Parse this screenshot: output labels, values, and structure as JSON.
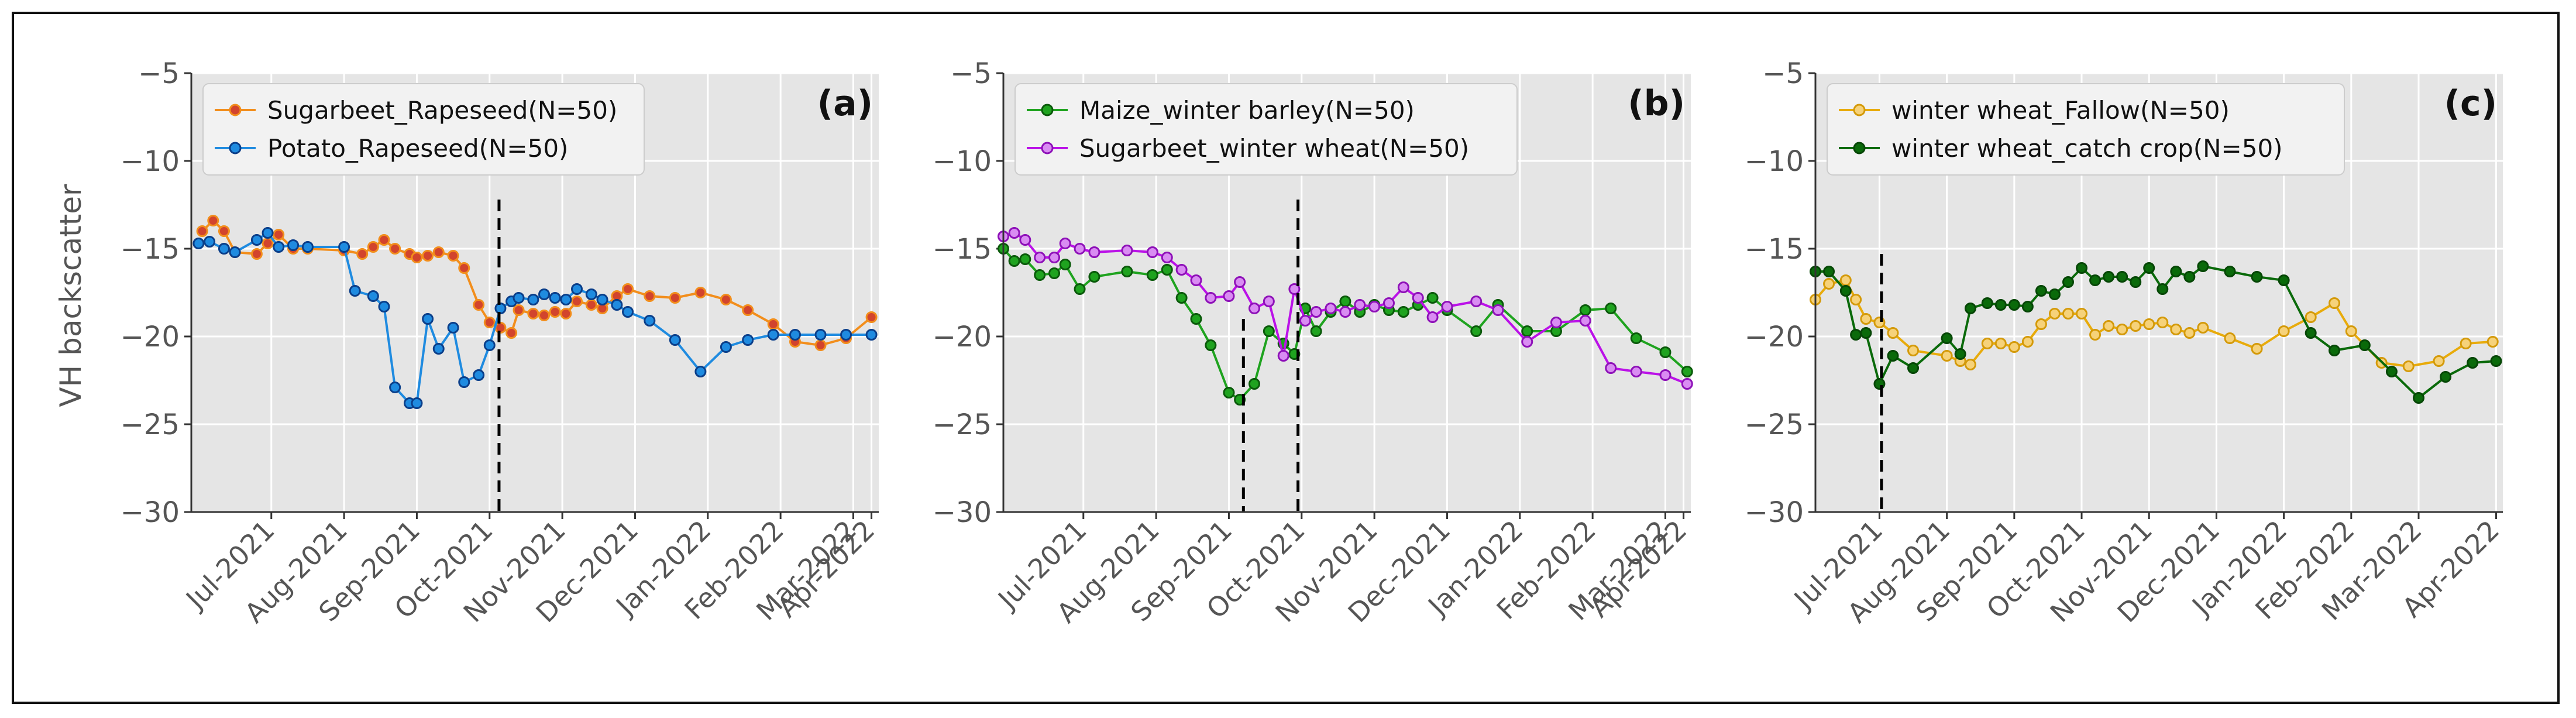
{
  "figure": {
    "y_axis_label": "VH backscatter",
    "colors": {
      "panel_bg": "#e5e5e5",
      "grid": "#ffffff",
      "tick_text": "#555555",
      "marker_vline": "#000000"
    }
  },
  "chart_data": [
    {
      "type": "line",
      "panel_label": "(a)",
      "ylim": [
        -30,
        -5
      ],
      "yticks": [
        -5,
        -10,
        -15,
        -20,
        -25,
        -30
      ],
      "xlim": [
        -0.15,
        9.3
      ],
      "tick_labels": [
        "Jul-2021",
        "Aug-2021",
        "Sep-2021",
        "Oct-2021",
        "Nov-2021",
        "Dec-2021",
        "Jan-2022",
        "Feb-2022",
        "Mar-2022",
        "Apr-2022"
      ],
      "tick_positions": [
        0.95,
        1.95,
        2.95,
        3.95,
        4.95,
        5.95,
        6.95,
        7.95,
        8.95,
        9.2
      ],
      "vlines": [
        {
          "x": 4.08,
          "y_top": -12.2
        }
      ],
      "legend_location": "top-left",
      "series": [
        {
          "name": "Sugarbeet_Rapeseed(N=50)",
          "line_color": "#f28e1c",
          "marker_fill": "#d2442d",
          "marker_edge": "#f28e1c",
          "x": [
            0.0,
            0.15,
            0.3,
            0.45,
            0.75,
            0.9,
            1.05,
            1.25,
            1.45,
            1.95,
            2.2,
            2.35,
            2.5,
            2.65,
            2.85,
            2.95,
            3.1,
            3.25,
            3.45,
            3.6,
            3.8,
            3.95,
            4.1,
            4.25,
            4.35,
            4.55,
            4.7,
            4.85,
            5.0,
            5.15,
            5.35,
            5.5,
            5.7,
            5.85,
            6.15,
            6.5,
            6.85,
            7.2,
            7.5,
            7.85,
            8.15,
            8.5,
            8.85,
            9.2
          ],
          "y": [
            -14.0,
            -13.4,
            -14.0,
            -15.2,
            -15.3,
            -14.7,
            -14.2,
            -15.0,
            -15.0,
            -15.1,
            -15.3,
            -14.9,
            -14.5,
            -15.0,
            -15.3,
            -15.5,
            -15.4,
            -15.2,
            -15.4,
            -16.1,
            -18.2,
            -19.2,
            -19.5,
            -19.8,
            -18.5,
            -18.7,
            -18.8,
            -18.6,
            -18.7,
            -18.0,
            -18.2,
            -18.4,
            -17.7,
            -17.3,
            -17.7,
            -17.8,
            -17.5,
            -17.9,
            -18.5,
            -19.3,
            -20.3,
            -20.5,
            -20.1,
            -18.9
          ]
        },
        {
          "name": "Potato_Rapeseed(N=50)",
          "line_color": "#1f8be0",
          "marker_fill": "#1f8be0",
          "marker_edge": "#0b3f8a",
          "x": [
            -0.05,
            0.1,
            0.3,
            0.45,
            0.75,
            0.9,
            1.05,
            1.25,
            1.45,
            1.95,
            2.1,
            2.35,
            2.5,
            2.65,
            2.85,
            2.95,
            3.1,
            3.25,
            3.45,
            3.6,
            3.8,
            3.95,
            4.1,
            4.25,
            4.35,
            4.55,
            4.7,
            4.85,
            5.0,
            5.15,
            5.35,
            5.5,
            5.7,
            5.85,
            6.15,
            6.5,
            6.85,
            7.2,
            7.5,
            7.85,
            8.15,
            8.5,
            8.85,
            9.2
          ],
          "y": [
            -14.7,
            -14.6,
            -15.0,
            -15.2,
            -14.5,
            -14.1,
            -14.9,
            -14.8,
            -14.9,
            -14.9,
            -17.4,
            -17.7,
            -18.3,
            -22.9,
            -23.8,
            -23.8,
            -19.0,
            -20.7,
            -19.5,
            -22.6,
            -22.2,
            -20.5,
            -18.4,
            -18.0,
            -17.8,
            -17.9,
            -17.6,
            -17.8,
            -17.9,
            -17.3,
            -17.6,
            -17.9,
            -18.2,
            -18.6,
            -19.1,
            -20.2,
            -22.0,
            -20.6,
            -20.2,
            -19.9,
            -19.9,
            -19.9,
            -19.9,
            -19.9
          ]
        }
      ]
    },
    {
      "type": "line",
      "panel_label": "(b)",
      "ylim": [
        -30,
        -5
      ],
      "yticks": [
        -5,
        -10,
        -15,
        -20,
        -25,
        -30
      ],
      "xlim": [
        -0.15,
        9.3
      ],
      "tick_labels": [
        "Jul-2021",
        "Aug-2021",
        "Sep-2021",
        "Oct-2021",
        "Nov-2021",
        "Dec-2021",
        "Jan-2022",
        "Feb-2022",
        "Mar-2022",
        "Apr-2022"
      ],
      "tick_positions": [
        0.95,
        1.95,
        2.95,
        3.95,
        4.95,
        5.95,
        6.95,
        7.95,
        8.95,
        9.2
      ],
      "vlines": [
        {
          "x": 3.15,
          "y_top": -19.0
        },
        {
          "x": 3.9,
          "y_top": -12.2
        }
      ],
      "legend_location": "top-left",
      "series": [
        {
          "name": "Maize_winter barley(N=50)",
          "line_color": "#1fa31f",
          "marker_fill": "#1fa31f",
          "marker_edge": "#0b5a0b",
          "x": [
            -0.15,
            0.0,
            0.15,
            0.35,
            0.55,
            0.7,
            0.9,
            1.1,
            1.55,
            1.9,
            2.1,
            2.3,
            2.5,
            2.7,
            2.95,
            3.1,
            3.3,
            3.5,
            3.7,
            3.85,
            4.0,
            4.15,
            4.35,
            4.55,
            4.75,
            4.95,
            5.15,
            5.35,
            5.55,
            5.75,
            5.95,
            6.35,
            6.65,
            7.05,
            7.45,
            7.85,
            8.2,
            8.55,
            8.95,
            9.25
          ],
          "y": [
            -15.0,
            -15.7,
            -15.6,
            -16.5,
            -16.4,
            -15.9,
            -17.3,
            -16.6,
            -16.3,
            -16.5,
            -16.2,
            -17.8,
            -19.0,
            -20.5,
            -23.2,
            -23.6,
            -22.7,
            -19.7,
            -20.4,
            -21.0,
            -18.4,
            -19.7,
            -18.6,
            -18.0,
            -18.6,
            -18.2,
            -18.5,
            -18.6,
            -18.2,
            -17.8,
            -18.5,
            -19.7,
            -18.2,
            -19.7,
            -19.7,
            -18.5,
            -18.4,
            -20.1,
            -20.9,
            -22.0
          ]
        },
        {
          "name": "Sugarbeet_winter wheat(N=50)",
          "line_color": "#bb12e8",
          "marker_fill": "#d98cf2",
          "marker_edge": "#8e11b8",
          "x": [
            -0.15,
            0.0,
            0.15,
            0.35,
            0.55,
            0.7,
            0.9,
            1.1,
            1.55,
            1.9,
            2.1,
            2.3,
            2.5,
            2.7,
            2.95,
            3.1,
            3.3,
            3.5,
            3.7,
            3.85,
            4.0,
            4.15,
            4.35,
            4.55,
            4.75,
            4.95,
            5.15,
            5.35,
            5.55,
            5.75,
            5.95,
            6.35,
            6.65,
            7.05,
            7.45,
            7.85,
            8.2,
            8.55,
            8.95,
            9.25
          ],
          "y": [
            -14.3,
            -14.1,
            -14.5,
            -15.5,
            -15.5,
            -14.7,
            -15.0,
            -15.2,
            -15.1,
            -15.2,
            -15.5,
            -16.2,
            -16.8,
            -17.8,
            -17.7,
            -16.9,
            -18.4,
            -18.0,
            -21.1,
            -17.3,
            -19.1,
            -18.6,
            -18.4,
            -18.6,
            -18.2,
            -18.3,
            -18.1,
            -17.2,
            -17.8,
            -18.9,
            -18.3,
            -18.0,
            -18.5,
            -20.3,
            -19.2,
            -19.1,
            -21.8,
            -22.0,
            -22.2,
            -22.7
          ]
        }
      ]
    },
    {
      "type": "line",
      "panel_label": "(c)",
      "ylim": [
        -30,
        -5
      ],
      "yticks": [
        -5,
        -10,
        -15,
        -20,
        -25,
        -30
      ],
      "xlim": [
        0.0,
        10.2
      ],
      "tick_labels": [
        "Jul-2021",
        "Aug-2021",
        "Sep-2021",
        "Oct-2021",
        "Nov-2021",
        "Dec-2021",
        "Jan-2022",
        "Feb-2022",
        "Mar-2022",
        "Apr-2022"
      ],
      "tick_positions": [
        0.95,
        1.95,
        2.95,
        3.95,
        4.95,
        5.95,
        6.95,
        7.95,
        8.95,
        10.1
      ],
      "vlines": [
        {
          "x": 0.98,
          "y_top": -15.3
        }
      ],
      "legend_location": "top-left",
      "series": [
        {
          "name": "winter wheat_Fallow(N=50)",
          "line_color": "#e8ab0b",
          "marker_fill": "#f6d27a",
          "marker_edge": "#d49a0a",
          "x": [
            0.0,
            0.2,
            0.45,
            0.6,
            0.75,
            0.95,
            1.15,
            1.45,
            1.95,
            2.15,
            2.3,
            2.55,
            2.75,
            2.95,
            3.15,
            3.35,
            3.55,
            3.75,
            3.95,
            4.15,
            4.35,
            4.55,
            4.75,
            4.95,
            5.15,
            5.35,
            5.55,
            5.75,
            6.15,
            6.55,
            6.95,
            7.35,
            7.7,
            7.95,
            8.4,
            8.8,
            9.25,
            9.65,
            10.05
          ],
          "y": [
            -17.9,
            -17.0,
            -16.8,
            -17.9,
            -19.0,
            -19.2,
            -19.8,
            -20.8,
            -21.1,
            -21.4,
            -21.6,
            -20.4,
            -20.4,
            -20.6,
            -20.3,
            -19.3,
            -18.7,
            -18.7,
            -18.7,
            -19.9,
            -19.4,
            -19.6,
            -19.4,
            -19.3,
            -19.2,
            -19.6,
            -19.8,
            -19.5,
            -20.1,
            -20.7,
            -19.7,
            -18.9,
            -18.1,
            -19.7,
            -21.5,
            -21.7,
            -21.4,
            -20.4,
            -20.3
          ]
        },
        {
          "name": "winter wheat_catch crop(N=50)",
          "line_color": "#0a6a0a",
          "marker_fill": "#0a6a0a",
          "marker_edge": "#064706",
          "x": [
            0.0,
            0.2,
            0.45,
            0.6,
            0.75,
            0.95,
            1.15,
            1.45,
            1.95,
            2.15,
            2.3,
            2.55,
            2.75,
            2.95,
            3.15,
            3.35,
            3.55,
            3.75,
            3.95,
            4.15,
            4.35,
            4.55,
            4.75,
            4.95,
            5.15,
            5.35,
            5.55,
            5.75,
            6.15,
            6.55,
            6.95,
            7.35,
            7.7,
            8.15,
            8.55,
            8.95,
            9.35,
            9.75,
            10.1
          ],
          "y": [
            -16.3,
            -16.3,
            -17.4,
            -19.9,
            -19.8,
            -22.7,
            -21.1,
            -21.8,
            -20.1,
            -21.0,
            -18.4,
            -18.1,
            -18.2,
            -18.2,
            -18.3,
            -17.4,
            -17.6,
            -16.9,
            -16.1,
            -16.8,
            -16.6,
            -16.6,
            -16.9,
            -16.1,
            -17.3,
            -16.3,
            -16.6,
            -16.0,
            -16.3,
            -16.6,
            -16.8,
            -19.8,
            -20.8,
            -20.5,
            -22.0,
            -23.5,
            -22.3,
            -21.5,
            -21.4
          ]
        }
      ]
    }
  ]
}
